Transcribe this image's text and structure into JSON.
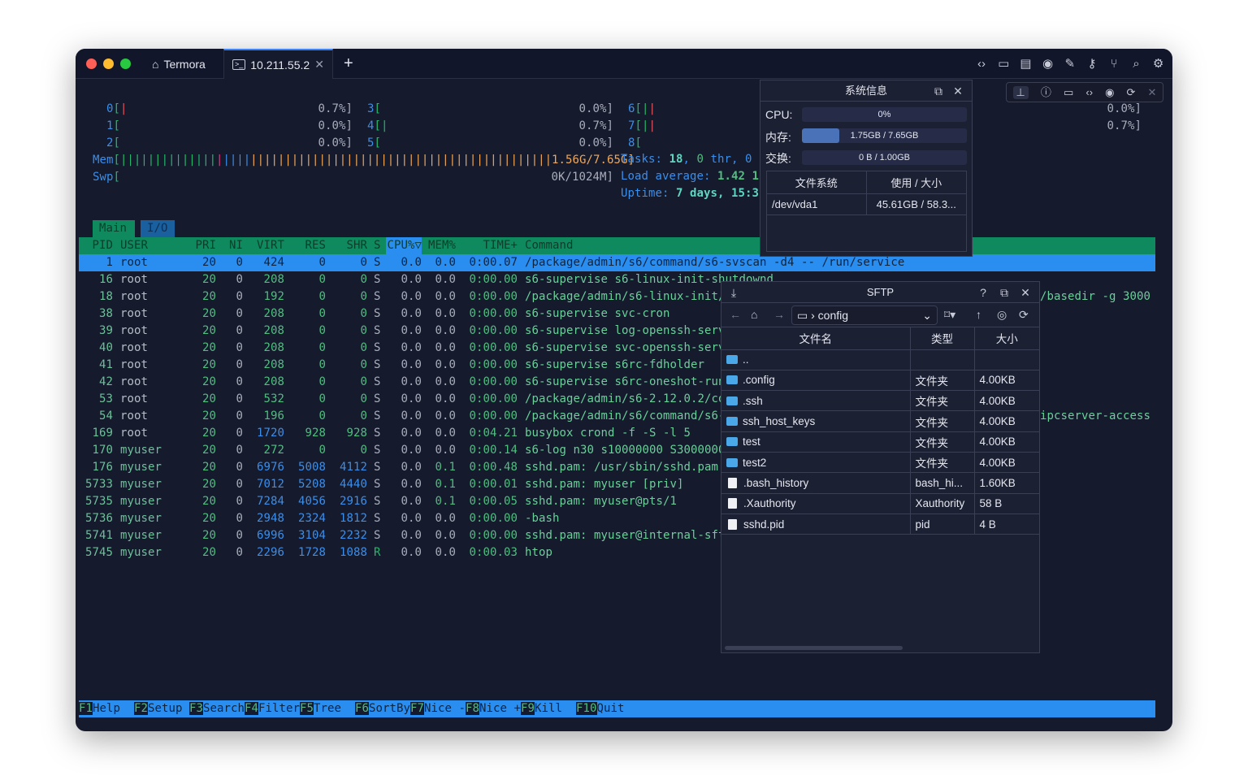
{
  "window": {
    "tabs": [
      {
        "label": "Termora",
        "icon": "home-icon"
      },
      {
        "label": "10.211.55.2",
        "icon": "terminal-icon",
        "active": true
      }
    ],
    "new_tab": "+",
    "toolbar_icons": [
      "code-icon",
      "folder-icon",
      "notes-icon",
      "record-icon",
      "pencil-icon",
      "key-icon",
      "git-branch-icon",
      "search-icon",
      "gear-icon"
    ]
  },
  "htop": {
    "cpu_meters": [
      {
        "id": "0",
        "value": "0.7%]",
        "bars": [
          "#e05561"
        ]
      },
      {
        "id": "1",
        "value": "0.0%]",
        "bars": []
      },
      {
        "id": "2",
        "value": "0.0%]",
        "bars": []
      },
      {
        "id": "3",
        "value": "0.0%]",
        "bars": []
      },
      {
        "id": "4",
        "value": "0.7%]",
        "bars": [
          "#25b86a"
        ]
      },
      {
        "id": "5",
        "value": "0.0%]",
        "bars": []
      },
      {
        "id": "6",
        "value": "0.0%]",
        "bars": [
          "#25b86a",
          "#e05561"
        ]
      },
      {
        "id": "7",
        "value": "0.7%]",
        "bars": [
          "#25b86a",
          "#e05561"
        ]
      },
      {
        "id": "8",
        "value": "",
        "bars": []
      }
    ],
    "mem": {
      "label": "Mem",
      "value": "1.56G/7.65G]"
    },
    "swp": {
      "label": "Swp",
      "value": "0K/1024M]"
    },
    "tasks": {
      "label": "Tasks: ",
      "count": "18",
      "sep": ", ",
      "thr": "0",
      "thr_label": " thr, 0 "
    },
    "load": {
      "label": "Load average: ",
      "value": "1.42 1"
    },
    "uptime": {
      "label": "Uptime: ",
      "value": "7 days, 15:3"
    },
    "tabs": [
      "Main",
      "I/O"
    ],
    "columns": {
      "pid": "PID",
      "user": "USER",
      "pri": "PRI",
      "ni": "NI",
      "virt": "VIRT",
      "res": "RES",
      "shr": "SHR",
      "s": "S",
      "cpu": "CPU%▽",
      "mem": "MEM%",
      "time": "TIME+",
      "cmd": "Command"
    },
    "processes": [
      {
        "pid": "1",
        "user": "root",
        "pri": "20",
        "ni": "0",
        "virt": "424",
        "res": "0",
        "shr": "0",
        "s": "S",
        "cpu": "0.0",
        "mem": "0.0",
        "time": "0:00.07",
        "cmd": "/package/admin/s6/command/s6-svscan -d4 -- /run/service",
        "selected": true
      },
      {
        "pid": "16",
        "user": "root",
        "pri": "20",
        "ni": "0",
        "virt": "208",
        "res": "0",
        "shr": "0",
        "s": "S",
        "cpu": "0.0",
        "mem": "0.0",
        "time": "0:00.00",
        "cmd": "s6-supervise s6-linux-init-shutdownd"
      },
      {
        "pid": "18",
        "user": "root",
        "pri": "20",
        "ni": "0",
        "virt": "192",
        "res": "0",
        "shr": "0",
        "s": "S",
        "cpu": "0.0",
        "mem": "0.0",
        "time": "0:00.00",
        "cmd": "/package/admin/s6-linux-init/",
        "tail": "/basedir -g 3000"
      },
      {
        "pid": "38",
        "user": "root",
        "pri": "20",
        "ni": "0",
        "virt": "208",
        "res": "0",
        "shr": "0",
        "s": "S",
        "cpu": "0.0",
        "mem": "0.0",
        "time": "0:00.00",
        "cmd": "s6-supervise svc-cron"
      },
      {
        "pid": "39",
        "user": "root",
        "pri": "20",
        "ni": "0",
        "virt": "208",
        "res": "0",
        "shr": "0",
        "s": "S",
        "cpu": "0.0",
        "mem": "0.0",
        "time": "0:00.00",
        "cmd": "s6-supervise log-openssh-serv"
      },
      {
        "pid": "40",
        "user": "root",
        "pri": "20",
        "ni": "0",
        "virt": "208",
        "res": "0",
        "shr": "0",
        "s": "S",
        "cpu": "0.0",
        "mem": "0.0",
        "time": "0:00.00",
        "cmd": "s6-supervise svc-openssh-serv"
      },
      {
        "pid": "41",
        "user": "root",
        "pri": "20",
        "ni": "0",
        "virt": "208",
        "res": "0",
        "shr": "0",
        "s": "S",
        "cpu": "0.0",
        "mem": "0.0",
        "time": "0:00.00",
        "cmd": "s6-supervise s6rc-fdholder"
      },
      {
        "pid": "42",
        "user": "root",
        "pri": "20",
        "ni": "0",
        "virt": "208",
        "res": "0",
        "shr": "0",
        "s": "S",
        "cpu": "0.0",
        "mem": "0.0",
        "time": "0:00.00",
        "cmd": "s6-supervise s6rc-oneshot-run"
      },
      {
        "pid": "53",
        "user": "root",
        "pri": "20",
        "ni": "0",
        "virt": "532",
        "res": "0",
        "shr": "0",
        "s": "S",
        "cpu": "0.0",
        "mem": "0.0",
        "time": "0:00.00",
        "cmd": "/package/admin/s6-2.12.0.2/co"
      },
      {
        "pid": "54",
        "user": "root",
        "pri": "20",
        "ni": "0",
        "virt": "196",
        "res": "0",
        "shr": "0",
        "s": "S",
        "cpu": "0.0",
        "mem": "0.0",
        "time": "0:00.00",
        "cmd": "/package/admin/s6/command/s6-",
        "tail": "ipcserver-access"
      },
      {
        "pid": "169",
        "user": "root",
        "pri": "20",
        "ni": "0",
        "virt": "1720",
        "res": "928",
        "shr": "928",
        "s": "S",
        "cpu": "0.0",
        "mem": "0.0",
        "time": "0:04.21",
        "cmd": "busybox crond -f -S -l 5"
      },
      {
        "pid": "170",
        "user": "myuser",
        "pri": "20",
        "ni": "0",
        "virt": "272",
        "res": "0",
        "shr": "0",
        "s": "S",
        "cpu": "0.0",
        "mem": "0.0",
        "time": "0:00.14",
        "cmd": "s6-log n30 s10000000 S3000000"
      },
      {
        "pid": "176",
        "user": "myuser",
        "pri": "20",
        "ni": "0",
        "virt": "6976",
        "res": "5008",
        "shr": "4112",
        "s": "S",
        "cpu": "0.0",
        "mem": "0.1",
        "time": "0:00.48",
        "cmd": "sshd.pam: /usr/sbin/sshd.pam"
      },
      {
        "pid": "5733",
        "user": "myuser",
        "pri": "20",
        "ni": "0",
        "virt": "7012",
        "res": "5208",
        "shr": "4440",
        "s": "S",
        "cpu": "0.0",
        "mem": "0.1",
        "time": "0:00.01",
        "cmd": "sshd.pam: myuser [priv]"
      },
      {
        "pid": "5735",
        "user": "myuser",
        "pri": "20",
        "ni": "0",
        "virt": "7284",
        "res": "4056",
        "shr": "2916",
        "s": "S",
        "cpu": "0.0",
        "mem": "0.1",
        "time": "0:00.05",
        "cmd": "sshd.pam: myuser@pts/1"
      },
      {
        "pid": "5736",
        "user": "myuser",
        "pri": "20",
        "ni": "0",
        "virt": "2948",
        "res": "2324",
        "shr": "1812",
        "s": "S",
        "cpu": "0.0",
        "mem": "0.0",
        "time": "0:00.00",
        "cmd": "-bash"
      },
      {
        "pid": "5741",
        "user": "myuser",
        "pri": "20",
        "ni": "0",
        "virt": "6996",
        "res": "3104",
        "shr": "2232",
        "s": "S",
        "cpu": "0.0",
        "mem": "0.0",
        "time": "0:00.00",
        "cmd": "sshd.pam: myuser@internal-sft"
      },
      {
        "pid": "5745",
        "user": "myuser",
        "pri": "20",
        "ni": "0",
        "virt": "2296",
        "res": "1728",
        "shr": "1088",
        "s": "R",
        "cpu": "0.0",
        "mem": "0.0",
        "time": "0:00.03",
        "cmd": "htop"
      }
    ],
    "function_keys": [
      {
        "key": "F1",
        "label": "Help  "
      },
      {
        "key": "F2",
        "label": "Setup "
      },
      {
        "key": "F3",
        "label": "Search"
      },
      {
        "key": "F4",
        "label": "Filter"
      },
      {
        "key": "F5",
        "label": "Tree  "
      },
      {
        "key": "F6",
        "label": "SortBy"
      },
      {
        "key": "F7",
        "label": "Nice -"
      },
      {
        "key": "F8",
        "label": "Nice +"
      },
      {
        "key": "F9",
        "label": "Kill  "
      },
      {
        "key": "F10",
        "label": "Quit  "
      }
    ]
  },
  "float_toolbar": {
    "icons": [
      "pin-icon",
      "info-icon",
      "folder-icon",
      "code-icon",
      "gpu-icon",
      "sync-icon",
      "close-icon"
    ]
  },
  "sysinfo": {
    "title": "系统信息",
    "cpu": {
      "label": "CPU:",
      "text": "0%",
      "fraction": 0
    },
    "mem": {
      "label": "内存:",
      "text": "1.75GB / 7.65GB",
      "fraction": 0.229
    },
    "swap": {
      "label": "交换:",
      "text": "0 B / 1.00GB",
      "fraction": 0
    },
    "fs_headers": [
      "文件系统",
      "使用 / 大小"
    ],
    "fs_rows": [
      {
        "fs": "/dev/vda1",
        "usage": "45.61GB / 58.3..."
      }
    ]
  },
  "sftp": {
    "title": "SFTP",
    "path": "config",
    "headers": [
      "文件名",
      "类型",
      "大小"
    ],
    "files": [
      {
        "name": "..",
        "type": "",
        "size": "",
        "kind": "folder"
      },
      {
        "name": ".config",
        "type": "文件夹",
        "size": "4.00KB",
        "kind": "folder"
      },
      {
        "name": ".ssh",
        "type": "文件夹",
        "size": "4.00KB",
        "kind": "folder"
      },
      {
        "name": "ssh_host_keys",
        "type": "文件夹",
        "size": "4.00KB",
        "kind": "folder"
      },
      {
        "name": "test",
        "type": "文件夹",
        "size": "4.00KB",
        "kind": "folder"
      },
      {
        "name": "test2",
        "type": "文件夹",
        "size": "4.00KB",
        "kind": "folder"
      },
      {
        "name": ".bash_history",
        "type": "bash_hi...",
        "size": "1.60KB",
        "kind": "file"
      },
      {
        "name": ".Xauthority",
        "type": "Xauthority",
        "size": "58 B",
        "kind": "file"
      },
      {
        "name": "sshd.pid",
        "type": "pid",
        "size": "4 B",
        "kind": "file"
      }
    ]
  }
}
